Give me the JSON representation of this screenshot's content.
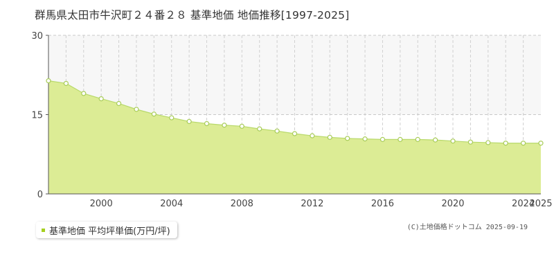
{
  "title": "群馬県太田市牛沢町２４番２８ 基準地価 地価推移[1997-2025]",
  "legend": {
    "label": "基準地価 平均坪単価(万円/坪)"
  },
  "copyright": "(C)土地価格ドットコム 2025-09-19",
  "colors": {
    "fill": "#dcec95",
    "line": "#b8d96a",
    "point_stroke": "#a8cc58",
    "band": "#f7f7f7"
  },
  "chart_data": {
    "type": "area",
    "title": "",
    "xlabel": "",
    "ylabel": "",
    "xlim": [
      1997,
      2025
    ],
    "ylim": [
      0,
      30
    ],
    "y_ticks": [
      "0",
      "15",
      "30"
    ],
    "x_ticks": [
      "2000",
      "2004",
      "2008",
      "2012",
      "2016",
      "2020",
      "2024",
      "2025"
    ],
    "grid": true,
    "legend_position": "bottom-left",
    "series": [
      {
        "name": "基準地価 平均坪単価(万円/坪)",
        "x": [
          1997,
          1998,
          1999,
          2000,
          2001,
          2002,
          2003,
          2004,
          2005,
          2006,
          2007,
          2008,
          2009,
          2010,
          2011,
          2012,
          2013,
          2014,
          2015,
          2016,
          2017,
          2018,
          2019,
          2020,
          2021,
          2022,
          2023,
          2024,
          2025
        ],
        "values": [
          21.4,
          20.9,
          19.0,
          18.0,
          17.1,
          16.0,
          15.1,
          14.4,
          13.7,
          13.3,
          13.0,
          12.8,
          12.3,
          11.9,
          11.4,
          11.0,
          10.7,
          10.5,
          10.4,
          10.3,
          10.3,
          10.3,
          10.2,
          10.0,
          9.8,
          9.7,
          9.6,
          9.6,
          9.6
        ]
      }
    ]
  }
}
